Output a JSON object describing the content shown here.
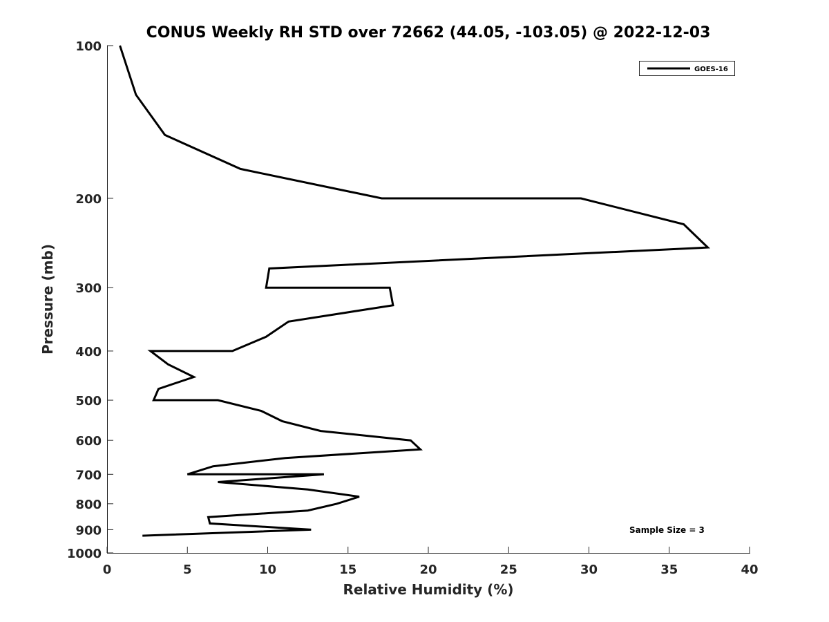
{
  "chart_data": {
    "type": "line",
    "title": "CONUS Weekly RH STD over 72662 (44.05, -103.05) @ 2022-12-03",
    "xlabel": "Relative Humidity (%)",
    "ylabel": "Pressure (mb)",
    "xlim": [
      0,
      40
    ],
    "ylim": [
      100,
      1000
    ],
    "y_scale": "log",
    "y_reversed": true,
    "grid": false,
    "legend_position": "top-right",
    "x_ticks": [
      0,
      5,
      10,
      15,
      20,
      25,
      30,
      35,
      40
    ],
    "x_tick_labels": [
      "0",
      "5",
      "10",
      "15",
      "20",
      "25",
      "30",
      "35",
      "40"
    ],
    "y_ticks": [
      100,
      200,
      300,
      400,
      500,
      600,
      700,
      800,
      900,
      1000
    ],
    "y_tick_labels": [
      "100",
      "200",
      "300",
      "400",
      "500",
      "600",
      "700",
      "800",
      "900",
      "1000"
    ],
    "series": [
      {
        "name": "GOES-16",
        "color": "#000000",
        "points": [
          [
            0.8,
            100
          ],
          [
            1.8,
            125
          ],
          [
            3.6,
            150
          ],
          [
            8.3,
            175
          ],
          [
            17.1,
            200
          ],
          [
            29.5,
            200
          ],
          [
            35.9,
            225
          ],
          [
            37.4,
            250
          ],
          [
            10.1,
            275
          ],
          [
            9.9,
            300
          ],
          [
            17.6,
            300
          ],
          [
            17.8,
            325
          ],
          [
            11.3,
            350
          ],
          [
            9.9,
            375
          ],
          [
            7.8,
            400
          ],
          [
            2.7,
            400
          ],
          [
            3.8,
            425
          ],
          [
            5.4,
            450
          ],
          [
            3.2,
            475
          ],
          [
            2.9,
            500
          ],
          [
            6.9,
            500
          ],
          [
            9.6,
            525
          ],
          [
            10.9,
            550
          ],
          [
            13.3,
            575
          ],
          [
            18.9,
            600
          ],
          [
            19.5,
            625
          ],
          [
            11.1,
            650
          ],
          [
            6.6,
            675
          ],
          [
            5.0,
            700
          ],
          [
            13.5,
            700
          ],
          [
            6.9,
            725
          ],
          [
            12.5,
            750
          ],
          [
            15.7,
            775
          ],
          [
            14.3,
            800
          ],
          [
            12.5,
            825
          ],
          [
            6.3,
            850
          ],
          [
            6.4,
            875
          ],
          [
            12.7,
            900
          ],
          [
            2.2,
            925
          ]
        ]
      }
    ],
    "annotations": [
      "Sample Size = 3"
    ]
  }
}
